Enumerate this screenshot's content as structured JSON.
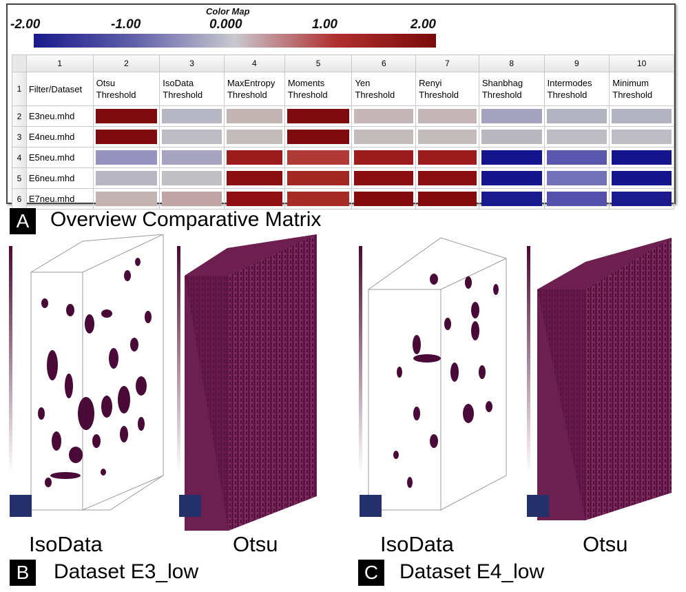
{
  "colormap": {
    "title": "Color Map",
    "ticks": [
      "-2.00",
      "-1.00",
      "0.000",
      "1.00",
      "2.00"
    ]
  },
  "matrix": {
    "column_numbers": [
      "1",
      "2",
      "3",
      "4",
      "5",
      "6",
      "7",
      "8",
      "9",
      "10"
    ],
    "row_numbers": [
      "1",
      "2",
      "3",
      "4",
      "5",
      "6"
    ],
    "corner_label": "Filter/Dataset",
    "filters": [
      [
        "Otsu",
        "Threshold"
      ],
      [
        "IsoData",
        "Threshold"
      ],
      [
        "MaxEntropy",
        "Threshold"
      ],
      [
        "Moments",
        "Threshold"
      ],
      [
        "Yen",
        "Threshold"
      ],
      [
        "Renyi",
        "Threshold"
      ],
      [
        "Shanbhag",
        "Threshold"
      ],
      [
        "Intermodes",
        "Threshold"
      ],
      [
        "Minimum",
        "Threshold"
      ]
    ],
    "datasets": [
      "E3neu.mhd",
      "E4neu.mhd",
      "E5neu.mhd",
      "E6neu.mhd",
      "E7neu.mhd"
    ],
    "cell_colors": [
      [
        "#7e0a0e",
        "#b8b7c6",
        "#c4b5b5",
        "#7e0a0e",
        "#c5b7b7",
        "#c5b7b7",
        "#a5a2c0",
        "#b3b2c0",
        "#b3b2c0"
      ],
      [
        "#7e0a0e",
        "#bdbcc2",
        "#c4bcbc",
        "#7e0a0e",
        "#c3bcbc",
        "#c3bcbc",
        "#b9b8c0",
        "#bdbcc2",
        "#bdbcc2"
      ],
      [
        "#9793c0",
        "#a7a4c2",
        "#9a1c1c",
        "#b03a35",
        "#9a1c1c",
        "#9a1c1c",
        "#14148c",
        "#5a58ae",
        "#14148c"
      ],
      [
        "#b7b6c2",
        "#c0bfc4",
        "#8a0f12",
        "#a32823",
        "#8a0f12",
        "#8a0f12",
        "#14148c",
        "#7472b8",
        "#14148c"
      ],
      [
        "#c3b3b3",
        "#bfa5a5",
        "#900f12",
        "#a72b26",
        "#830b0e",
        "#830b0e",
        "#1a1a8e",
        "#5450ac",
        "#1a1a8e"
      ]
    ]
  },
  "captions": {
    "a_letter": "A",
    "a_text": "Overview Comparative Matrix",
    "b_letter": "B",
    "b_text": "Dataset E3_low",
    "c_letter": "C",
    "c_text": "Dataset E4_low"
  },
  "views": [
    "IsoData",
    "Otsu",
    "IsoData",
    "Otsu"
  ],
  "colors": {
    "accent": "#5a0f3c",
    "grid": "#9a9a9a"
  }
}
